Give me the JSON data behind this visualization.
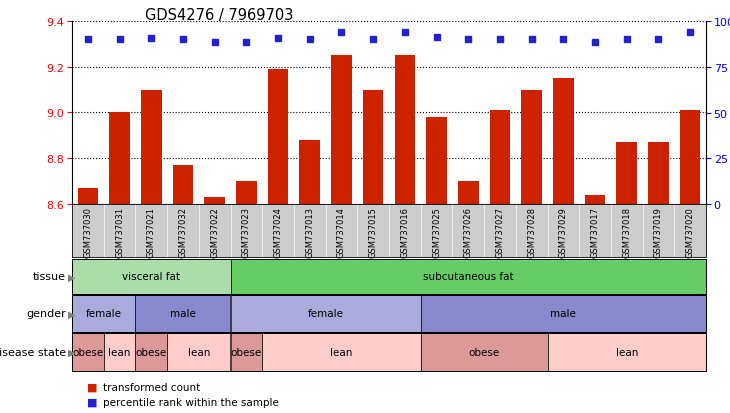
{
  "title": "GDS4276 / 7969703",
  "samples": [
    "GSM737030",
    "GSM737031",
    "GSM737021",
    "GSM737032",
    "GSM737022",
    "GSM737023",
    "GSM737024",
    "GSM737013",
    "GSM737014",
    "GSM737015",
    "GSM737016",
    "GSM737025",
    "GSM737026",
    "GSM737027",
    "GSM737028",
    "GSM737029",
    "GSM737017",
    "GSM737018",
    "GSM737019",
    "GSM737020"
  ],
  "bar_values": [
    8.67,
    9.0,
    9.1,
    8.77,
    8.63,
    8.7,
    9.19,
    8.88,
    9.25,
    9.1,
    9.25,
    8.98,
    8.7,
    9.01,
    9.1,
    9.15,
    8.64,
    8.87,
    8.87,
    9.01
  ],
  "percentile_values": [
    9.32,
    9.32,
    9.325,
    9.32,
    9.31,
    9.31,
    9.325,
    9.32,
    9.35,
    9.32,
    9.35,
    9.33,
    9.32,
    9.32,
    9.32,
    9.32,
    9.31,
    9.32,
    9.32,
    9.35
  ],
  "ylim": [
    8.6,
    9.4
  ],
  "yticks_left": [
    8.6,
    8.8,
    9.0,
    9.2,
    9.4
  ],
  "yticks_right_vals": [
    0,
    25,
    50,
    75,
    100
  ],
  "yticks_right_labels": [
    "0",
    "25",
    "50",
    "75",
    "100%"
  ],
  "bar_color": "#cc2200",
  "percentile_color": "#2222cc",
  "tissue_groups": [
    {
      "label": "visceral fat",
      "start": 0,
      "end": 4,
      "color": "#aaddaa"
    },
    {
      "label": "subcutaneous fat",
      "start": 5,
      "end": 19,
      "color": "#66cc66"
    }
  ],
  "gender_groups": [
    {
      "label": "female",
      "start": 0,
      "end": 1,
      "color": "#aaaadd"
    },
    {
      "label": "male",
      "start": 2,
      "end": 4,
      "color": "#8888cc"
    },
    {
      "label": "female",
      "start": 5,
      "end": 10,
      "color": "#aaaadd"
    },
    {
      "label": "male",
      "start": 11,
      "end": 19,
      "color": "#8888cc"
    }
  ],
  "disease_groups": [
    {
      "label": "obese",
      "start": 0,
      "end": 0,
      "color": "#dd9999"
    },
    {
      "label": "lean",
      "start": 1,
      "end": 1,
      "color": "#ffcccc"
    },
    {
      "label": "obese",
      "start": 2,
      "end": 2,
      "color": "#dd9999"
    },
    {
      "label": "lean",
      "start": 3,
      "end": 4,
      "color": "#ffcccc"
    },
    {
      "label": "obese",
      "start": 5,
      "end": 5,
      "color": "#dd9999"
    },
    {
      "label": "lean",
      "start": 6,
      "end": 10,
      "color": "#ffcccc"
    },
    {
      "label": "obese",
      "start": 11,
      "end": 14,
      "color": "#dd9999"
    },
    {
      "label": "lean",
      "start": 15,
      "end": 19,
      "color": "#ffcccc"
    }
  ],
  "legend": [
    {
      "label": "transformed count",
      "color": "#cc2200"
    },
    {
      "label": "percentile rank within the sample",
      "color": "#2222cc"
    }
  ],
  "fig_width": 7.3,
  "fig_height": 4.14,
  "dpi": 100
}
